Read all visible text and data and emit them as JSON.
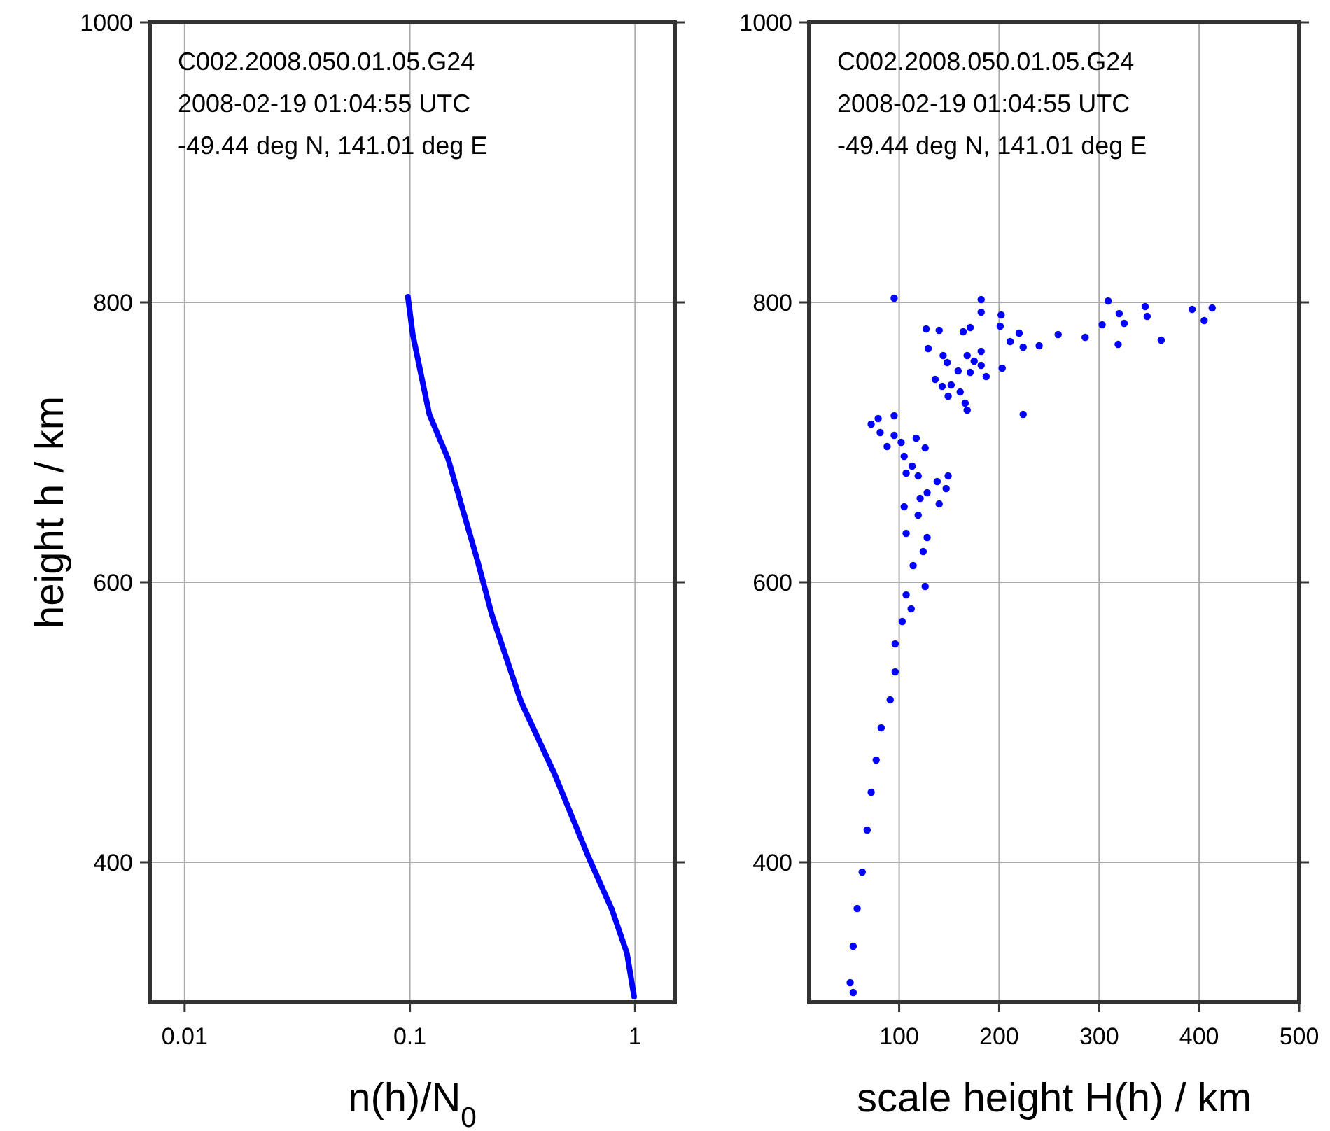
{
  "chart_data": [
    {
      "type": "line",
      "xlabel": "n(h)/N$_{0}$",
      "ylabel": "height h / km",
      "log": "x",
      "xlim": [
        0.007,
        1.5
      ],
      "xticks": [
        0.01,
        0.1,
        1
      ],
      "ylim": [
        300,
        1000
      ],
      "yticks": [
        400,
        600,
        800,
        1000
      ],
      "grid": true,
      "line_style": "solid",
      "annotations": [
        "C002.2008.050.01.05.G24",
        "2008-02-19 01:04:55 UTC",
        "-49.44 deg N, 141.01 deg E"
      ],
      "series": [
        {
          "color": "#0000ff",
          "x": [
            0.098,
            0.103,
            0.122,
            0.148,
            0.2,
            0.231,
            0.311,
            0.439,
            0.62,
            0.79,
            0.92,
            0.99
          ],
          "values": [
            804,
            777,
            720,
            688,
            615,
            577,
            515,
            463,
            404,
            366,
            335,
            304
          ]
        }
      ]
    },
    {
      "type": "scatter",
      "xlabel": "scale height H(h) / km",
      "xlim": [
        10,
        500
      ],
      "xticks": [
        100,
        200,
        300,
        400,
        500
      ],
      "ylim": [
        300,
        1000
      ],
      "yticks": [
        400,
        600,
        800,
        1000
      ],
      "grid": true,
      "marker": "circle",
      "annotations": [
        "C002.2008.050.01.05.G24",
        "2008-02-19 01:04:55 UTC",
        "-49.44 deg N, 141.01 deg E"
      ],
      "series": [
        {
          "color": "#0000ff",
          "x": [
            95,
            182,
            182,
            202,
            201,
            127,
            140,
            164,
            171,
            220,
            211,
            224,
            240,
            259,
            286,
            303,
            309,
            320,
            325,
            319,
            346,
            348,
            362,
            393,
            405,
            413,
            129,
            144,
            148,
            168,
            182,
            175,
            182,
            187,
            203,
            159,
            171,
            136,
            143,
            152,
            149,
            161,
            166,
            168,
            224,
            95,
            72,
            79,
            81,
            88,
            95,
            102,
            117,
            126,
            105,
            113,
            107,
            119,
            138,
            149,
            147,
            128,
            121,
            140,
            105,
            119,
            107,
            128,
            124,
            114,
            126,
            107,
            112,
            103,
            96,
            96,
            91,
            82,
            77,
            72,
            68,
            63,
            58,
            54,
            51,
            54
          ],
          "values": [
            803,
            802,
            793,
            791,
            783,
            781,
            780,
            779,
            782,
            778,
            772,
            768,
            769,
            777,
            775,
            784,
            801,
            792,
            785,
            770,
            797,
            790,
            773,
            795,
            787,
            796,
            767,
            762,
            757,
            762,
            765,
            758,
            755,
            747,
            753,
            751,
            750,
            745,
            740,
            741,
            733,
            736,
            728,
            723,
            720,
            719,
            713,
            717,
            707,
            697,
            705,
            700,
            703,
            696,
            690,
            683,
            678,
            676,
            672,
            676,
            667,
            664,
            660,
            656,
            654,
            648,
            635,
            632,
            622,
            612,
            597,
            591,
            581,
            572,
            556,
            536,
            516,
            496,
            473,
            450,
            423,
            393,
            367,
            340,
            314,
            307
          ]
        }
      ]
    }
  ]
}
